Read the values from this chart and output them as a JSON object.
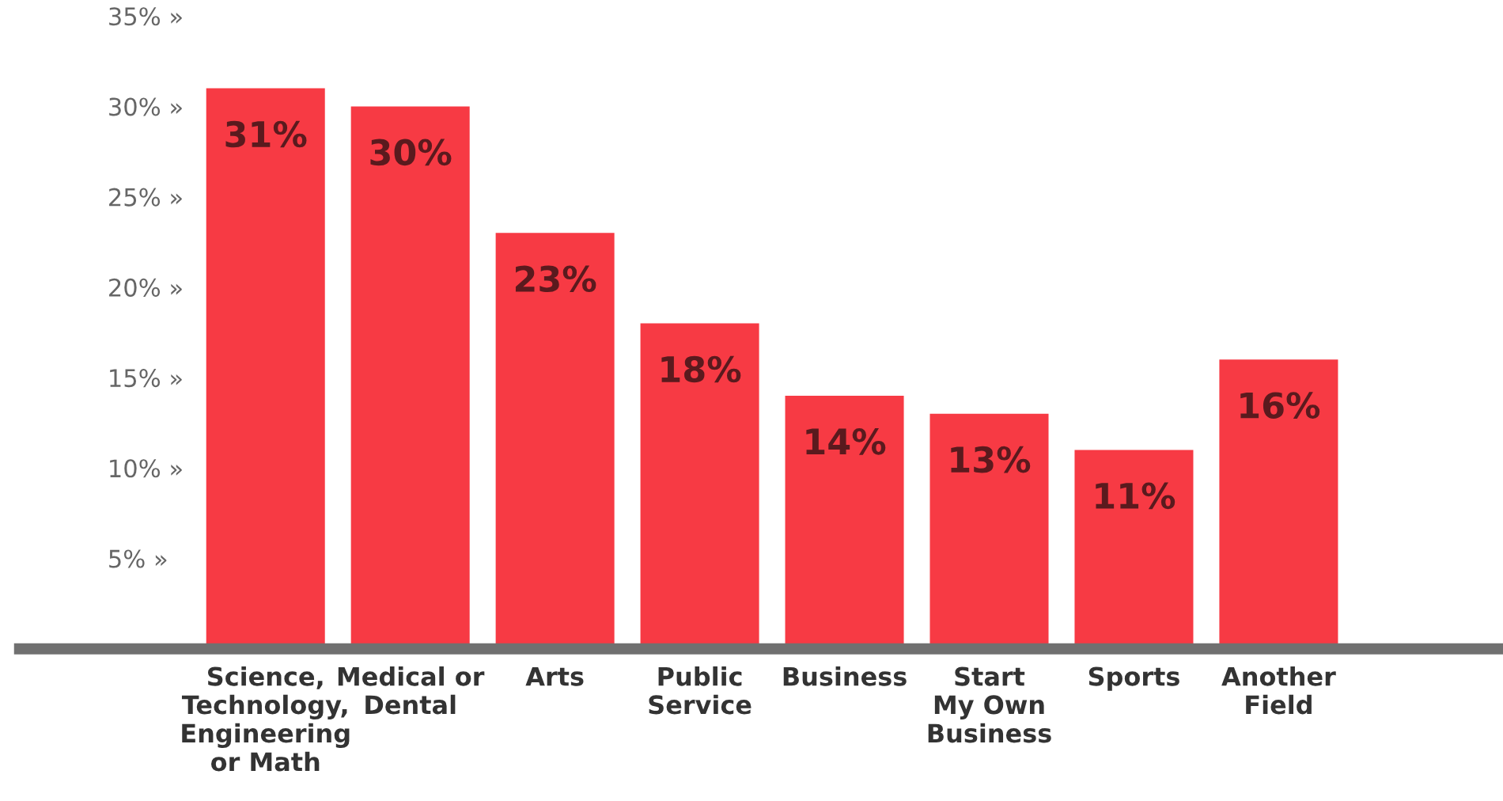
{
  "chart_data": {
    "type": "bar",
    "categories": [
      "Science,\nTechnology,\nEngineering\nor Math",
      "Medical or\nDental",
      "Arts",
      "Public\nService",
      "Business",
      "Start\nMy Own\nBusiness",
      "Sports",
      "Another\nField"
    ],
    "values": [
      31,
      30,
      23,
      18,
      14,
      13,
      11,
      16
    ],
    "value_labels": [
      "31%",
      "30%",
      "23%",
      "18%",
      "14%",
      "13%",
      "11%",
      "16%"
    ],
    "color": "#f73a44",
    "ylim": [
      0,
      35
    ],
    "yticks": [
      {
        "value": 5,
        "label": "5% »"
      },
      {
        "value": 10,
        "label": "10% »"
      },
      {
        "value": 15,
        "label": "15% »"
      },
      {
        "value": 20,
        "label": "20% »"
      },
      {
        "value": 25,
        "label": "25% »"
      },
      {
        "value": 30,
        "label": "30% »"
      },
      {
        "value": 35,
        "label": "35% »"
      }
    ],
    "grid": false,
    "legend": false
  }
}
